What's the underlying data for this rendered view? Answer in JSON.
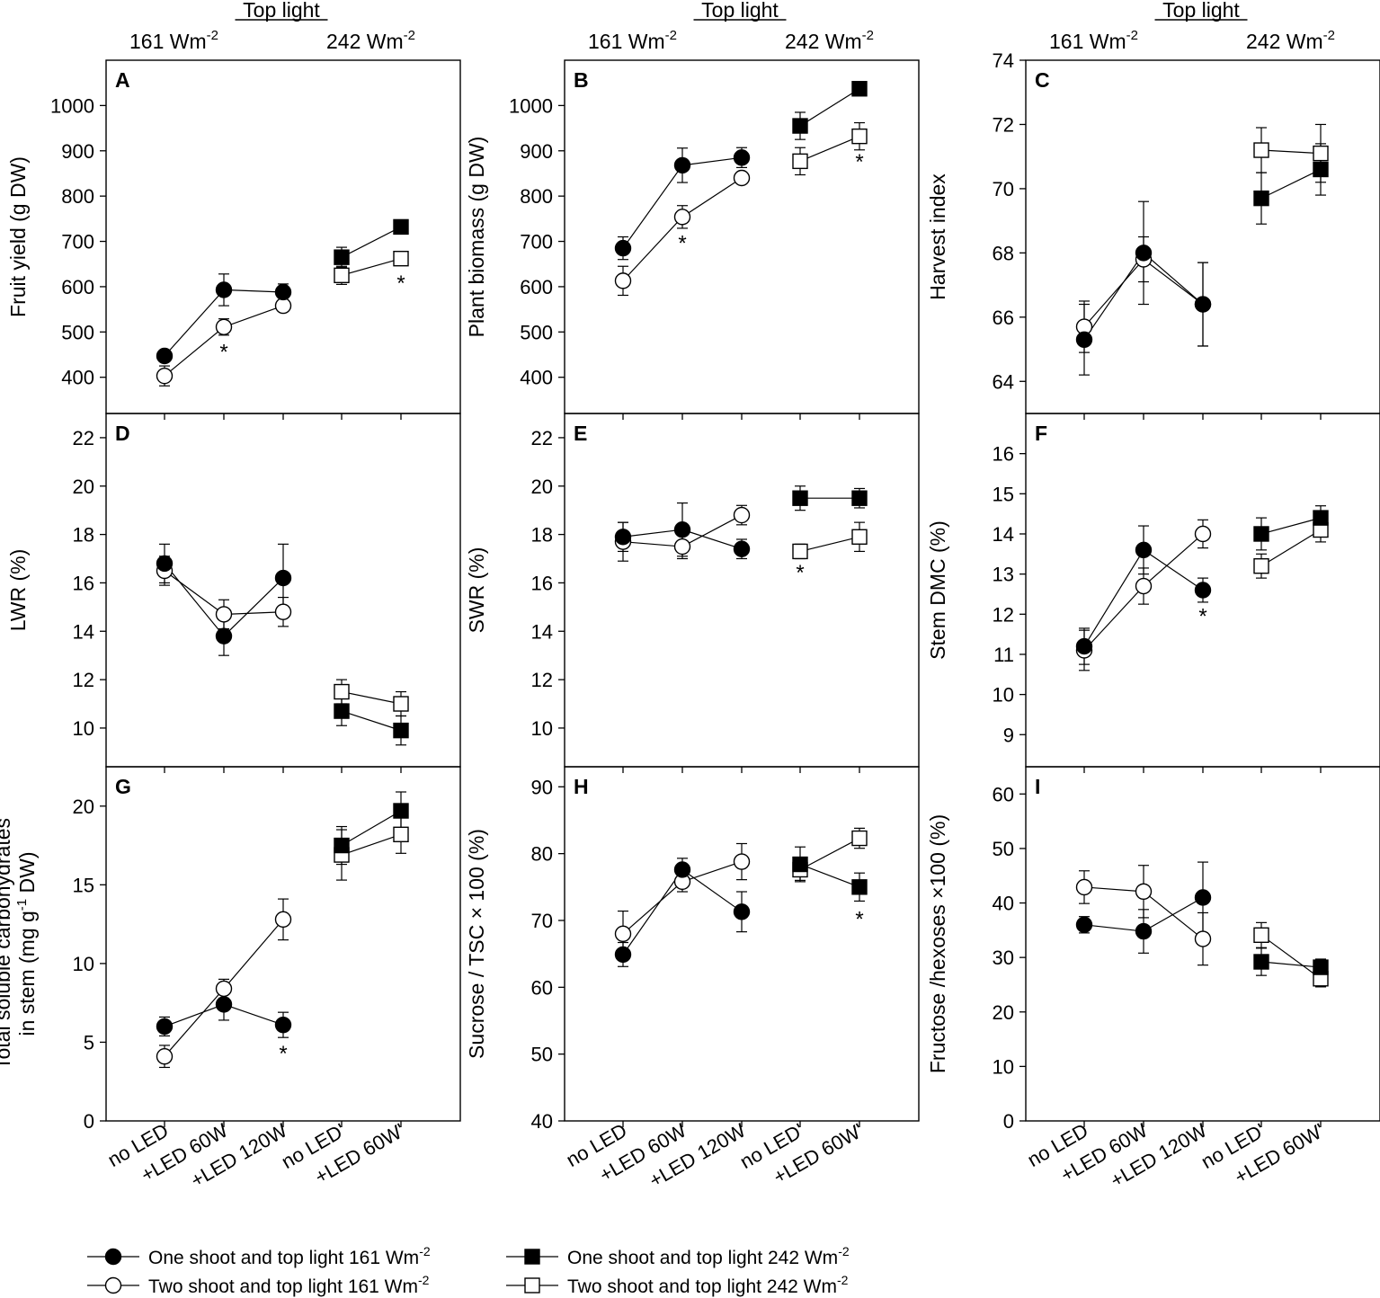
{
  "header": {
    "top_light": "Top light",
    "low_irr": "161 Wm",
    "high_irr": "242 Wm",
    "exponent": "-2"
  },
  "x_categories": [
    "no LED",
    "+LED 60W",
    "+LED 120W",
    "no LED'",
    "+LED 60W'"
  ],
  "legend": {
    "one_low": "One shoot and top light 161 Wm",
    "two_low": "Two shoot and top light 161 Wm",
    "one_high": "One shoot and top light 242 Wm",
    "two_high": "Two shoot and top light 242 Wm",
    "exponent": "-2"
  },
  "chart_data": [
    {
      "panel": "A",
      "type": "line",
      "ylabel": "Fruit yield (g DW)",
      "ylim": [
        320,
        1100
      ],
      "yticks": [
        400,
        500,
        600,
        700,
        800,
        900,
        1000
      ],
      "series": [
        {
          "name": "One shoot and top light 161 Wm-2",
          "x": [
            "no LED",
            "+LED 60W",
            "+LED 120W"
          ],
          "values": [
            447,
            593,
            588
          ],
          "err": [
            12,
            35,
            18
          ]
        },
        {
          "name": "Two shoot and top light 161 Wm-2",
          "x": [
            "no LED",
            "+LED 60W",
            "+LED 120W"
          ],
          "values": [
            403,
            511,
            558
          ],
          "err": [
            22,
            18,
            12
          ]
        },
        {
          "name": "One shoot and top light 242 Wm-2",
          "x": [
            "no LED'",
            "+LED 60W'"
          ],
          "values": [
            665,
            732
          ],
          "err": [
            22,
            10
          ]
        },
        {
          "name": "Two shoot and top light 242 Wm-2",
          "x": [
            "no LED'",
            "+LED 60W'"
          ],
          "values": [
            625,
            662
          ],
          "err": [
            20,
            10
          ]
        }
      ],
      "stars": [
        {
          "x": "+LED 60W",
          "y": 460
        },
        {
          "x": "+LED 60W'",
          "y": 612
        }
      ]
    },
    {
      "panel": "B",
      "type": "line",
      "ylabel": "Plant biomass (g DW)",
      "ylim": [
        320,
        1100
      ],
      "yticks": [
        400,
        500,
        600,
        700,
        800,
        900,
        1000
      ],
      "series": [
        {
          "name": "One shoot and top light 161 Wm-2",
          "x": [
            "no LED",
            "+LED 60W",
            "+LED 120W"
          ],
          "values": [
            685,
            868,
            885
          ],
          "err": [
            25,
            38,
            22
          ]
        },
        {
          "name": "Two shoot and top light 161 Wm-2",
          "x": [
            "no LED",
            "+LED 60W",
            "+LED 120W"
          ],
          "values": [
            613,
            754,
            840
          ],
          "err": [
            32,
            25,
            12
          ]
        },
        {
          "name": "One shoot and top light 242 Wm-2",
          "x": [
            "no LED'",
            "+LED 60W'"
          ],
          "values": [
            955,
            1037
          ],
          "err": [
            30,
            12
          ]
        },
        {
          "name": "Two shoot and top light 242 Wm-2",
          "x": [
            "no LED'",
            "+LED 60W'"
          ],
          "values": [
            877,
            932
          ],
          "err": [
            30,
            30
          ]
        }
      ],
      "stars": [
        {
          "x": "+LED 60W",
          "y": 700
        },
        {
          "x": "+LED 60W'",
          "y": 880
        }
      ]
    },
    {
      "panel": "C",
      "type": "line",
      "ylabel": "Harvest index",
      "ylim": [
        63,
        74
      ],
      "yticks": [
        64,
        66,
        68,
        70,
        72,
        74
      ],
      "series": [
        {
          "name": "One shoot and top light 161 Wm-2",
          "x": [
            "no LED",
            "+LED 60W",
            "+LED 120W"
          ],
          "values": [
            65.3,
            68.0,
            66.4
          ],
          "err": [
            1.1,
            1.6,
            1.3
          ]
        },
        {
          "name": "Two shoot and top light 161 Wm-2",
          "x": [
            "no LED",
            "+LED 60W",
            "+LED 120W"
          ],
          "values": [
            65.7,
            67.8,
            66.4
          ],
          "err": [
            0.8,
            0.7,
            1.3
          ]
        },
        {
          "name": "One shoot and top light 242 Wm-2",
          "x": [
            "no LED'",
            "+LED 60W'"
          ],
          "values": [
            69.7,
            70.6
          ],
          "err": [
            0.8,
            0.8
          ]
        },
        {
          "name": "Two shoot and top light 242 Wm-2",
          "x": [
            "no LED'",
            "+LED 60W'"
          ],
          "values": [
            71.2,
            71.1
          ],
          "err": [
            0.7,
            0.9
          ]
        }
      ],
      "stars": []
    },
    {
      "panel": "D",
      "type": "line",
      "ylabel": "LWR (%)",
      "ylim": [
        8.4,
        23
      ],
      "yticks": [
        10,
        12,
        14,
        16,
        18,
        20,
        22
      ],
      "series": [
        {
          "name": "One shoot and top light 161 Wm-2",
          "x": [
            "no LED",
            "+LED 60W",
            "+LED 120W"
          ],
          "values": [
            16.8,
            13.8,
            16.2
          ],
          "err": [
            0.8,
            0.8,
            1.4
          ]
        },
        {
          "name": "Two shoot and top light 161 Wm-2",
          "x": [
            "no LED",
            "+LED 60W",
            "+LED 120W"
          ],
          "values": [
            16.5,
            14.7,
            14.8
          ],
          "err": [
            0.6,
            0.6,
            0.6
          ]
        },
        {
          "name": "One shoot and top light 242 Wm-2",
          "x": [
            "no LED'",
            "+LED 60W'"
          ],
          "values": [
            10.7,
            9.9
          ],
          "err": [
            0.6,
            0.6
          ]
        },
        {
          "name": "Two shoot and top light 242 Wm-2",
          "x": [
            "no LED'",
            "+LED 60W'"
          ],
          "values": [
            11.5,
            11.0
          ],
          "err": [
            0.5,
            0.5
          ]
        }
      ],
      "stars": []
    },
    {
      "panel": "E",
      "type": "line",
      "ylabel": "SWR (%)",
      "ylim": [
        8.4,
        23
      ],
      "yticks": [
        10,
        12,
        14,
        16,
        18,
        20,
        22
      ],
      "series": [
        {
          "name": "One shoot and top light 161 Wm-2",
          "x": [
            "no LED",
            "+LED 60W",
            "+LED 120W"
          ],
          "values": [
            17.9,
            18.2,
            17.4
          ],
          "err": [
            0.6,
            1.1,
            0.4
          ]
        },
        {
          "name": "Two shoot and top light 161 Wm-2",
          "x": [
            "no LED",
            "+LED 60W",
            "+LED 120W"
          ],
          "values": [
            17.7,
            17.5,
            18.8
          ],
          "err": [
            0.8,
            0.5,
            0.4
          ]
        },
        {
          "name": "One shoot and top light 242 Wm-2",
          "x": [
            "no LED'",
            "+LED 60W'"
          ],
          "values": [
            19.5,
            19.5
          ],
          "err": [
            0.5,
            0.4
          ]
        },
        {
          "name": "Two shoot and top light 242 Wm-2",
          "x": [
            "no LED'",
            "+LED 60W'"
          ],
          "values": [
            17.3,
            17.9
          ],
          "err": [
            0.3,
            0.6
          ]
        }
      ],
      "stars": [
        {
          "x": "no LED'",
          "y": 16.5
        }
      ]
    },
    {
      "panel": "F",
      "type": "line",
      "ylabel": "Stem DMC (%)",
      "ylim": [
        8.2,
        17
      ],
      "yticks": [
        9,
        10,
        11,
        12,
        13,
        14,
        15,
        16
      ],
      "series": [
        {
          "name": "One shoot and top light 161 Wm-2",
          "x": [
            "no LED",
            "+LED 60W",
            "+LED 120W"
          ],
          "values": [
            11.2,
            13.6,
            12.6
          ],
          "err": [
            0.45,
            0.6,
            0.3
          ]
        },
        {
          "name": "Two shoot and top light 161 Wm-2",
          "x": [
            "no LED",
            "+LED 60W",
            "+LED 120W"
          ],
          "values": [
            11.1,
            12.7,
            14.0
          ],
          "err": [
            0.5,
            0.45,
            0.35
          ]
        },
        {
          "name": "One shoot and top light 242 Wm-2",
          "x": [
            "no LED'",
            "+LED 60W'"
          ],
          "values": [
            14.0,
            14.4
          ],
          "err": [
            0.4,
            0.3
          ]
        },
        {
          "name": "Two shoot and top light 242 Wm-2",
          "x": [
            "no LED'",
            "+LED 60W'"
          ],
          "values": [
            13.2,
            14.1
          ],
          "err": [
            0.3,
            0.3
          ]
        }
      ],
      "stars": [
        {
          "x": "+LED 120W",
          "y": 12.0
        }
      ]
    },
    {
      "panel": "G",
      "type": "line",
      "ylabel_line1": "Total soluble carbohydrates",
      "ylabel_line2": "in stem (mg g",
      "ylabel_exp": "-1",
      "ylabel_tail": " DW)",
      "ylim": [
        0,
        22.5
      ],
      "yticks": [
        0,
        5,
        10,
        15,
        20
      ],
      "series": [
        {
          "name": "One shoot and top light 161 Wm-2",
          "x": [
            "no LED",
            "+LED 60W",
            "+LED 120W"
          ],
          "values": [
            6.0,
            7.4,
            6.1
          ],
          "err": [
            0.6,
            1.0,
            0.8
          ]
        },
        {
          "name": "Two shoot and top light 161 Wm-2",
          "x": [
            "no LED",
            "+LED 60W",
            "+LED 120W"
          ],
          "values": [
            4.1,
            8.4,
            12.8
          ],
          "err": [
            0.7,
            0.6,
            1.3
          ]
        },
        {
          "name": "One shoot and top light 242 Wm-2",
          "x": [
            "no LED'",
            "+LED 60W'"
          ],
          "values": [
            17.5,
            19.7
          ],
          "err": [
            1.2,
            1.2
          ]
        },
        {
          "name": "Two shoot and top light 242 Wm-2",
          "x": [
            "no LED'",
            "+LED 60W'"
          ],
          "values": [
            16.9,
            18.2
          ],
          "err": [
            1.6,
            1.2
          ]
        }
      ],
      "stars": [
        {
          "x": "+LED 120W",
          "y": 4.4
        }
      ]
    },
    {
      "panel": "H",
      "type": "line",
      "ylabel": "Sucrose / TSC × 100 (%)",
      "ylim": [
        40,
        93
      ],
      "yticks": [
        40,
        50,
        60,
        70,
        80,
        90
      ],
      "series": [
        {
          "name": "One shoot and top light 161 Wm-2",
          "x": [
            "no LED",
            "+LED 60W",
            "+LED 120W"
          ],
          "values": [
            64.9,
            77.6,
            71.3
          ],
          "err": [
            1.8,
            1.7,
            3.0
          ]
        },
        {
          "name": "Two shoot and top light 161 Wm-2",
          "x": [
            "no LED",
            "+LED 60W",
            "+LED 120W"
          ],
          "values": [
            68.0,
            75.8,
            78.8
          ],
          "err": [
            3.4,
            1.5,
            2.7
          ]
        },
        {
          "name": "One shoot and top light 242 Wm-2",
          "x": [
            "no LED'",
            "+LED 60W'"
          ],
          "values": [
            78.4,
            75.0
          ],
          "err": [
            2.6,
            2.1
          ]
        },
        {
          "name": "Two shoot and top light 242 Wm-2",
          "x": [
            "no LED'",
            "+LED 60W'"
          ],
          "values": [
            77.6,
            82.3
          ],
          "err": [
            1.6,
            1.5
          ]
        }
      ],
      "stars": [
        {
          "x": "+LED 60W'",
          "y": 70.5
        }
      ]
    },
    {
      "panel": "I",
      "type": "line",
      "ylabel": "Fructose /hexoses ×100 (%)",
      "ylim": [
        0,
        65
      ],
      "yticks": [
        0,
        10,
        20,
        30,
        40,
        50,
        60
      ],
      "series": [
        {
          "name": "One shoot and top light 161 Wm-2",
          "x": [
            "no LED",
            "+LED 60W",
            "+LED 120W"
          ],
          "values": [
            36.0,
            34.8,
            41.0
          ],
          "err": [
            1.5,
            4.0,
            6.5
          ]
        },
        {
          "name": "Two shoot and top light 161 Wm-2",
          "x": [
            "no LED",
            "+LED 60W",
            "+LED 120W"
          ],
          "values": [
            42.9,
            42.1,
            33.4
          ],
          "err": [
            3.0,
            4.8,
            4.8
          ]
        },
        {
          "name": "One shoot and top light 242 Wm-2",
          "x": [
            "no LED'",
            "+LED 60W'"
          ],
          "values": [
            29.2,
            28.2
          ],
          "err": [
            2.5,
            1.5
          ]
        },
        {
          "name": "Two shoot and top light 242 Wm-2",
          "x": [
            "no LED'",
            "+LED 60W'"
          ],
          "values": [
            34.1,
            26.1
          ],
          "err": [
            2.3,
            1.5
          ]
        }
      ],
      "stars": []
    }
  ]
}
